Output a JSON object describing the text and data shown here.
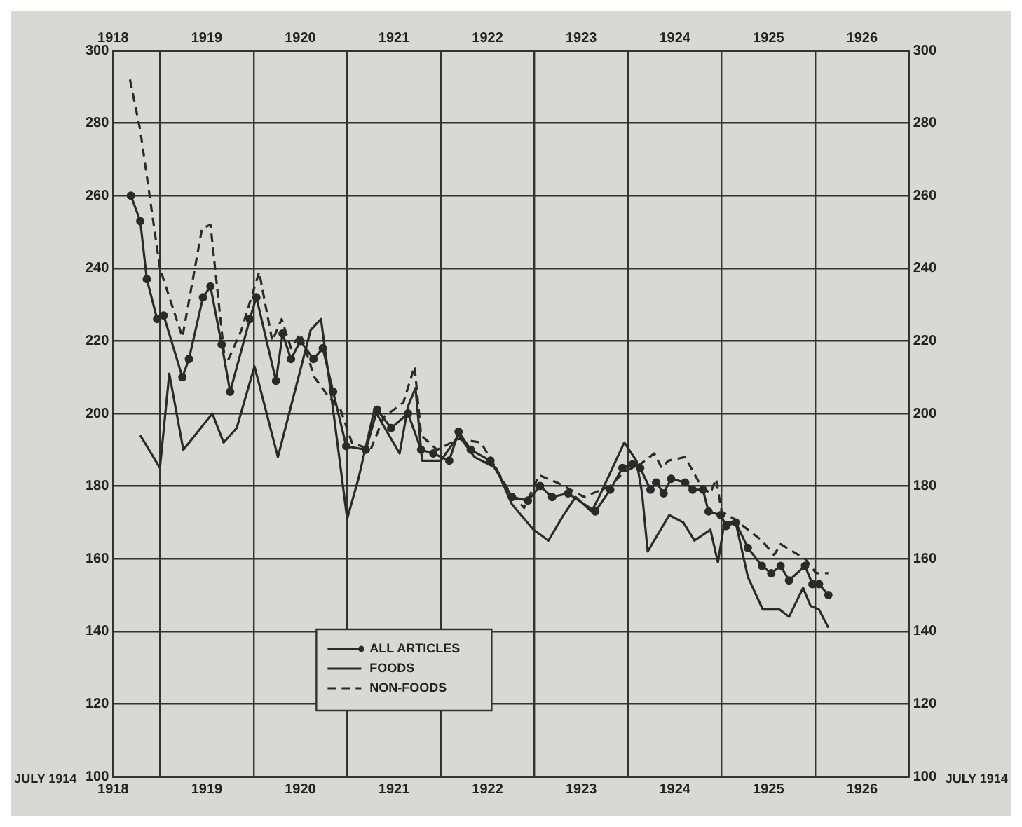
{
  "chart_data": {
    "type": "line",
    "annotations": [
      "JULY 1914",
      "JULY 1914"
    ],
    "xlim": [
      1918.5,
      1927.0
    ],
    "xticks": [
      {
        "value": 1918.5,
        "label": "1918"
      },
      {
        "value": 1919,
        "label": null
      },
      {
        "value": 1919.5,
        "label": "1919"
      },
      {
        "value": 1920,
        "label": null
      },
      {
        "value": 1920.5,
        "label": "1920"
      },
      {
        "value": 1921,
        "label": null
      },
      {
        "value": 1921.5,
        "label": "1921"
      },
      {
        "value": 1922,
        "label": null
      },
      {
        "value": 1922.5,
        "label": "1922"
      },
      {
        "value": 1923,
        "label": null
      },
      {
        "value": 1923.5,
        "label": "1923"
      },
      {
        "value": 1924,
        "label": null
      },
      {
        "value": 1924.5,
        "label": "1924"
      },
      {
        "value": 1925,
        "label": null
      },
      {
        "value": 1925.5,
        "label": "1925"
      },
      {
        "value": 1926,
        "label": null
      },
      {
        "value": 1926.5,
        "label": "1926"
      }
    ],
    "x2lim": [
      1918.5,
      1927.0
    ],
    "x2ticks": [
      {
        "value": 1918.5,
        "label": "1918"
      },
      {
        "value": 1919.5,
        "label": "1919"
      },
      {
        "value": 1920.5,
        "label": "1920"
      },
      {
        "value": 1921.5,
        "label": "1921"
      },
      {
        "value": 1922.5,
        "label": "1922"
      },
      {
        "value": 1923.5,
        "label": "1923"
      },
      {
        "value": 1924.5,
        "label": "1924"
      },
      {
        "value": 1925.5,
        "label": "1925"
      },
      {
        "value": 1926.5,
        "label": "1926"
      }
    ],
    "ylim": [
      100,
      300
    ],
    "yticks": [
      100,
      120,
      140,
      160,
      180,
      200,
      220,
      240,
      260,
      280,
      300
    ],
    "y2lim": [
      100,
      300
    ],
    "y2ticks": [
      100,
      120,
      140,
      160,
      180,
      200,
      220,
      240,
      260,
      280,
      300
    ],
    "grid": true,
    "legend": "bottom left",
    "series": [
      {
        "name": "ALL ARTICLES",
        "color": "#2a2a2a",
        "marker": "circle",
        "line_style": "solid",
        "x": [
          1918.69,
          1918.79,
          1918.86,
          1918.97,
          1919.04,
          1919.24,
          1919.31,
          1919.46,
          1919.54,
          1919.66,
          1919.75,
          1919.96,
          1920.03,
          1920.24,
          1920.31,
          1920.4,
          1920.5,
          1920.64,
          1920.74,
          1920.85,
          1920.99,
          1921.2,
          1921.32,
          1921.47,
          1921.65,
          1921.79,
          1921.92,
          1922.09,
          1922.19,
          1922.32,
          1922.53,
          1922.76,
          1922.93,
          1923.06,
          1923.19,
          1923.36,
          1923.65,
          1923.81,
          1923.94,
          1924.05,
          1924.13,
          1924.24,
          1924.3,
          1924.38,
          1924.46,
          1924.61,
          1924.69,
          1924.8,
          1924.86,
          1924.99,
          1925.05,
          1925.15,
          1925.28,
          1925.43,
          1925.53,
          1925.63,
          1925.72,
          1925.89,
          1925.97,
          1926.04,
          1926.14
        ],
        "values": [
          260,
          253,
          237,
          226,
          227,
          210,
          215,
          232,
          235,
          219,
          206,
          226,
          232,
          209,
          222,
          215,
          220,
          215,
          218,
          206,
          191,
          190,
          201,
          196,
          200,
          190,
          189,
          187,
          195,
          190,
          187,
          177,
          176,
          180,
          177,
          178,
          173,
          179,
          185,
          186,
          185,
          179,
          181,
          178,
          182,
          181,
          179,
          179,
          173,
          172,
          169,
          170,
          163,
          158,
          156,
          158,
          154,
          158,
          153,
          153,
          150
        ]
      },
      {
        "name": "FOODS",
        "color": "#2a2a2a",
        "marker": "none",
        "line_style": "solid",
        "x": [
          1918.79,
          1919.0,
          1919.1,
          1919.25,
          1919.56,
          1919.68,
          1919.82,
          1920.01,
          1920.26,
          1920.38,
          1920.61,
          1920.72,
          1920.82,
          1921.0,
          1921.12,
          1921.29,
          1921.56,
          1921.65,
          1921.73,
          1921.8,
          1922.0,
          1922.19,
          1922.36,
          1922.59,
          1922.76,
          1922.99,
          1923.15,
          1923.31,
          1923.44,
          1923.61,
          1923.69,
          1923.96,
          1924.09,
          1924.15,
          1924.21,
          1924.44,
          1924.59,
          1924.71,
          1924.88,
          1924.96,
          1925.03,
          1925.15,
          1925.28,
          1925.44,
          1925.62,
          1925.72,
          1925.87,
          1925.95,
          1926.04,
          1926.14
        ],
        "values": [
          194,
          185,
          211,
          190,
          200,
          192,
          196,
          213,
          188,
          200,
          223,
          226,
          207,
          171,
          182,
          201,
          189,
          202,
          207,
          187,
          187,
          194,
          188,
          185,
          175,
          168,
          165,
          172,
          177,
          173,
          177,
          192,
          187,
          178,
          162,
          172,
          170,
          165,
          168,
          159,
          170,
          170,
          155,
          146,
          146,
          144,
          152,
          147,
          146,
          141
        ]
      },
      {
        "name": "NON-FOODS",
        "color": "#2a2a2a",
        "marker": "none",
        "line_style": "dashed",
        "x": [
          1918.68,
          1918.79,
          1919.0,
          1919.24,
          1919.45,
          1919.54,
          1919.7,
          1919.87,
          1920.06,
          1920.2,
          1920.3,
          1920.4,
          1920.5,
          1920.65,
          1920.79,
          1920.93,
          1921.05,
          1921.25,
          1921.39,
          1921.6,
          1921.72,
          1921.79,
          1921.96,
          1922.19,
          1922.43,
          1922.72,
          1922.89,
          1923.05,
          1923.24,
          1923.53,
          1923.81,
          1923.96,
          1924.13,
          1924.28,
          1924.36,
          1924.43,
          1924.61,
          1924.78,
          1924.88,
          1924.94,
          1925.0,
          1925.13,
          1925.28,
          1925.43,
          1925.56,
          1925.63,
          1925.76,
          1925.89,
          1926.01,
          1926.14
        ],
        "values": [
          292,
          278,
          240,
          221,
          251,
          252,
          213,
          223,
          239,
          220,
          226,
          218,
          222,
          210,
          205,
          201,
          192,
          190,
          199,
          203,
          213,
          194,
          190,
          193,
          192,
          179,
          174,
          183,
          181,
          177,
          180,
          184,
          186,
          189,
          185,
          187,
          188,
          180,
          178,
          182,
          173,
          171,
          168,
          165,
          161,
          164,
          162,
          160,
          156,
          156
        ]
      }
    ]
  }
}
